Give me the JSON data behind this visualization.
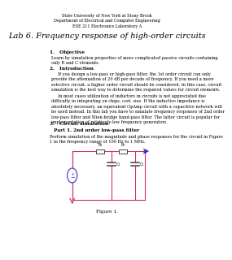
{
  "header_line1": "State University of New York at Stony Brook",
  "header_line2": "Department of Electrical and Computer Engineering",
  "header_line3": "ESE 211 Electronics Laboratory A",
  "title": "Lab 6. Frequency response of high-order circuits",
  "s1_head": "1.   Objective",
  "s1_body": "Learn by simulation properties of more complicated passive circuits containing\nonly R and C elements.",
  "s2_head": "2.   Introduction",
  "s2_p1": "     If you design a low-pass or high-pass filter, the 1st order circuit can only\nprovide the attenuation of 20 dB per decade of frequency. If you need a more\nselective circuit, a higher order circuit should be considered. In this case, circuit\nsimulation is the best way to determine the required values for circuit elements.",
  "s2_p2": "     In most cases utilization of inductors in circuits is not appreciated due\ndifficulty in integrating on chips, cost, size. If the inductive impedance is\nabsolutely necessary, an equivalent OpAmp circuit with a capacitive network will\nbe used instead. In this lab you have to simulate frequency responses of 2nd order\nlow-pass filter and Wien-bridge band-pass filter. The latter circuit is popular for\nimplementation of relatively-low frequency generators.",
  "s3_head": "3.   Circuit simulation",
  "part1_head": "Part 1. 2nd order low-pass filter",
  "part1_body": "Perform simulation of the magnitude and phase responses for the circuit in Figure\n1 in the frequency range of 100 Hz to 1 MHz.",
  "figure_label": "Figure 1.",
  "bg_color": "#ffffff",
  "text_color": "#000000",
  "wire_color": "#cc3366",
  "source_color": "#3333cc",
  "resistor_color": "#555555",
  "cap_color": "#555555"
}
